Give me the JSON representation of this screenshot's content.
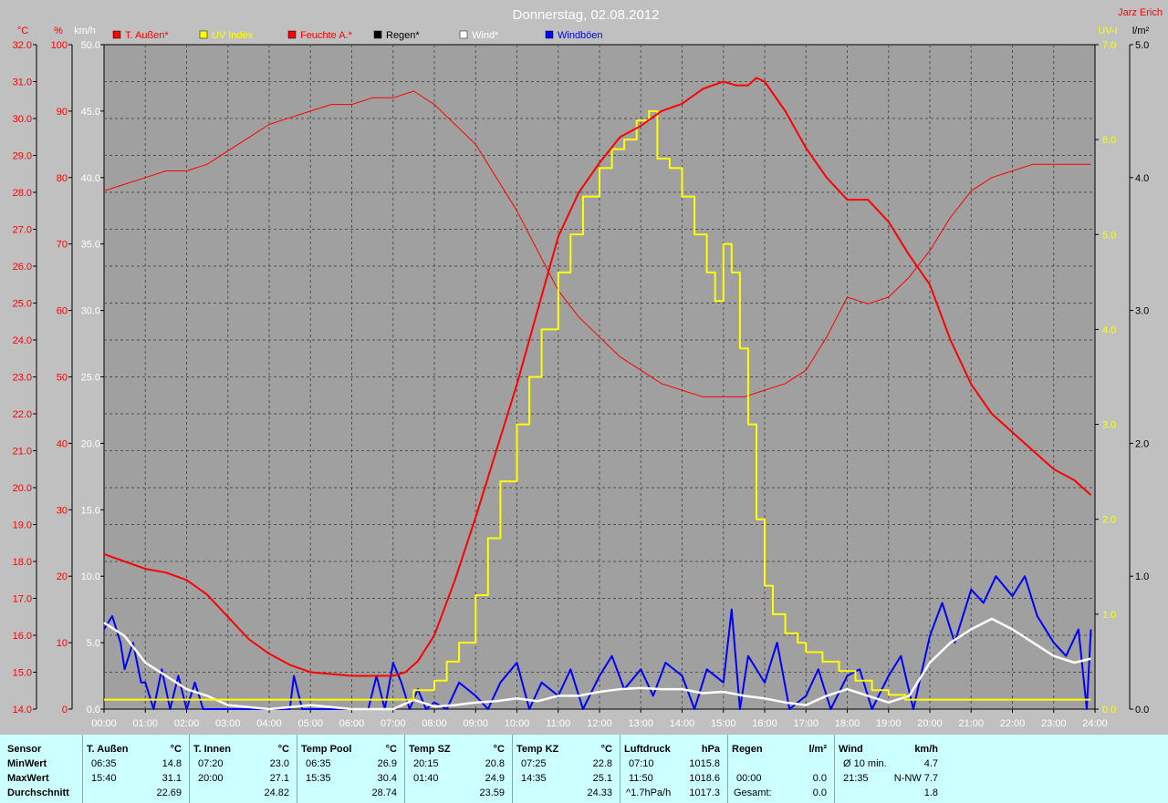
{
  "header": {
    "title": "Donnerstag, 02.08.2012",
    "author": "Jarz Erich"
  },
  "colors": {
    "temp": "#ff0000",
    "humidity": "#ff0000",
    "uv": "#ffff00",
    "rain": "#000000",
    "wind": "#ffffff",
    "gust": "#0000ff",
    "plot_bg": "#a0a0a0",
    "frame_bg": "#c0c0c0"
  },
  "chart_data": {
    "type": "line",
    "x_ticks": [
      "00:00",
      "01:00",
      "02:00",
      "03:00",
      "04:00",
      "05:00",
      "06:00",
      "07:00",
      "08:00",
      "09:00",
      "10:00",
      "11:00",
      "12:00",
      "13:00",
      "14:00",
      "15:00",
      "16:00",
      "17:00",
      "18:00",
      "19:00",
      "20:00",
      "21:00",
      "22:00",
      "23:00",
      "24:00"
    ],
    "axes": {
      "temp": {
        "label": "°C",
        "min": 14.0,
        "max": 32.0,
        "ticks": [
          "32.0",
          "31.0",
          "30.0",
          "29.0",
          "28.0",
          "27.0",
          "26.0",
          "25.0",
          "24.0",
          "23.0",
          "22.0",
          "21.0",
          "20.0",
          "19.0",
          "18.0",
          "17.0",
          "16.0",
          "15.0",
          "14.0"
        ]
      },
      "humidity": {
        "label": "%",
        "min": 0,
        "max": 100,
        "ticks": [
          "100",
          "90",
          "80",
          "70",
          "60",
          "50",
          "40",
          "30",
          "20",
          "10",
          "0"
        ]
      },
      "wind": {
        "label": "km/h",
        "min": 0,
        "max": 50,
        "ticks": [
          "50.0",
          "45.0",
          "40.0",
          "35.0",
          "30.0",
          "25.0",
          "20.0",
          "15.0",
          "10.0",
          "5.0",
          "0.0"
        ]
      },
      "uv": {
        "label": "UV-I",
        "min": 0,
        "max": 7,
        "ticks": [
          "7.0",
          "6.0",
          "5.0",
          "4.0",
          "3.0",
          "2.0",
          "1.0",
          "0.0"
        ]
      },
      "rain": {
        "label": "l/m²",
        "min": 0,
        "max": 5,
        "ticks": [
          "5.0",
          "4.0",
          "3.0",
          "2.0",
          "1.0",
          "0.0"
        ]
      }
    },
    "legend": [
      "T. Außen*",
      "UV Index",
      "Feuchte A.*",
      "Regen*",
      "Wind*",
      "Windböen"
    ],
    "series": [
      {
        "name": "T. Außen*",
        "axis": "temp",
        "x": [
          0,
          0.5,
          1,
          1.5,
          2,
          2.5,
          3,
          3.5,
          4,
          4.5,
          5,
          5.5,
          6,
          6.5,
          7,
          7.3,
          7.6,
          8,
          8.5,
          9,
          9.5,
          10,
          10.5,
          11,
          11.5,
          12,
          12.5,
          13,
          13.5,
          14,
          14.5,
          15,
          15.3,
          15.6,
          15.8,
          16,
          16.5,
          17,
          17.5,
          18,
          18.5,
          19,
          19.5,
          20,
          20.5,
          21,
          21.5,
          22,
          22.5,
          23,
          23.5,
          23.9
        ],
        "y": [
          18.2,
          18.0,
          17.8,
          17.7,
          17.5,
          17.1,
          16.5,
          15.9,
          15.5,
          15.2,
          15.0,
          14.95,
          14.9,
          14.9,
          14.9,
          15.0,
          15.3,
          16.0,
          17.5,
          19.2,
          21.0,
          22.8,
          24.8,
          26.8,
          28.0,
          28.8,
          29.5,
          29.8,
          30.2,
          30.4,
          30.8,
          31.0,
          30.9,
          30.9,
          31.1,
          31.0,
          30.2,
          29.2,
          28.4,
          27.8,
          27.8,
          27.2,
          26.3,
          25.5,
          24.0,
          22.8,
          22.0,
          21.5,
          21.0,
          20.5,
          20.2,
          19.8
        ]
      },
      {
        "name": "Feuchte A.*",
        "axis": "humidity",
        "x": [
          0,
          0.5,
          1,
          1.5,
          2,
          2.5,
          3,
          3.5,
          4,
          4.5,
          5,
          5.5,
          6,
          6.5,
          7,
          7.5,
          8,
          8.5,
          9,
          9.5,
          10,
          10.5,
          11,
          11.5,
          12,
          12.5,
          13,
          13.5,
          14,
          14.5,
          15,
          15.5,
          16,
          16.5,
          17,
          17.5,
          18,
          18.5,
          19,
          19.5,
          20,
          20.5,
          21,
          21.5,
          22,
          22.5,
          23,
          23.5,
          23.9
        ],
        "y": [
          78,
          79,
          80,
          81,
          81,
          82,
          84,
          86,
          88,
          89,
          90,
          91,
          91,
          92,
          92,
          93,
          91,
          88,
          85,
          80,
          75,
          69,
          63,
          59,
          56,
          53,
          51,
          49,
          48,
          47,
          47,
          47,
          48,
          49,
          51,
          56,
          62,
          61,
          62,
          65,
          69,
          74,
          78,
          80,
          81,
          82,
          82,
          82,
          82
        ]
      },
      {
        "name": "UV Index",
        "axis": "uv",
        "x": [
          0,
          7,
          7.5,
          8,
          8.3,
          8.6,
          9,
          9.3,
          9.6,
          10,
          10.3,
          10.6,
          11,
          11.3,
          11.6,
          12,
          12.3,
          12.6,
          12.9,
          13.2,
          13.4,
          13.7,
          14,
          14.3,
          14.6,
          14.8,
          15.0,
          15.2,
          15.4,
          15.6,
          15.8,
          16.0,
          16.2,
          16.5,
          16.8,
          17.0,
          17.4,
          17.8,
          18.2,
          18.6,
          19.0,
          19.4,
          23.9
        ],
        "y": [
          0.1,
          0.1,
          0.2,
          0.3,
          0.5,
          0.7,
          1.2,
          1.8,
          2.4,
          3.0,
          3.5,
          4.0,
          4.6,
          5.0,
          5.4,
          5.7,
          5.9,
          6.0,
          6.2,
          6.3,
          5.8,
          5.7,
          5.4,
          5.0,
          4.6,
          4.3,
          4.9,
          4.6,
          3.8,
          3.0,
          2.0,
          1.3,
          1.0,
          0.8,
          0.7,
          0.6,
          0.5,
          0.4,
          0.3,
          0.2,
          0.15,
          0.1,
          0.1
        ]
      },
      {
        "name": "Wind*",
        "axis": "wind",
        "x": [
          0,
          0.5,
          1,
          1.5,
          2,
          2.5,
          3,
          4,
          5,
          6,
          7,
          7.5,
          8,
          8.5,
          9,
          9.5,
          10,
          10.5,
          11,
          11.5,
          12,
          12.5,
          13,
          13.5,
          14,
          14.5,
          15,
          15.5,
          16,
          16.5,
          17,
          17.5,
          18,
          18.5,
          19,
          19.5,
          20,
          20.5,
          21,
          21.5,
          22,
          22.5,
          23,
          23.5,
          23.9
        ],
        "y": [
          6.5,
          5.5,
          3.5,
          2.5,
          1.5,
          1.0,
          0.3,
          0,
          0.3,
          0,
          0,
          0.7,
          0.2,
          0.3,
          0.5,
          0.6,
          0.8,
          0.6,
          1.0,
          1.0,
          1.3,
          1.5,
          1.6,
          1.5,
          1.5,
          1.2,
          1.3,
          1.0,
          0.8,
          0.5,
          0.3,
          1.0,
          1.5,
          1.0,
          0.5,
          1.0,
          3.5,
          5.0,
          6.0,
          6.8,
          6.0,
          5.0,
          4.0,
          3.5,
          3.8
        ]
      },
      {
        "name": "Windböen",
        "axis": "wind",
        "x": [
          0,
          0.2,
          0.4,
          0.5,
          0.7,
          0.9,
          1.0,
          1.2,
          1.4,
          1.6,
          1.8,
          2.0,
          2.2,
          2.4,
          2.6,
          3,
          4.5,
          4.6,
          4.8,
          5.0,
          6.4,
          6.6,
          6.8,
          7.0,
          7.2,
          7.4,
          7.6,
          7.8,
          8.0,
          8.3,
          8.6,
          9.0,
          9.3,
          9.6,
          10,
          10.3,
          10.6,
          11,
          11.3,
          11.6,
          12,
          12.3,
          12.6,
          13,
          13.3,
          13.6,
          14,
          14.3,
          14.6,
          15,
          15.2,
          15.4,
          15.6,
          16,
          16.3,
          16.6,
          17,
          17.3,
          17.6,
          18,
          18.3,
          18.6,
          19,
          19.3,
          19.6,
          20,
          20.3,
          20.6,
          21,
          21.3,
          21.6,
          22,
          22.3,
          22.6,
          23,
          23.3,
          23.6,
          23.8,
          23.9
        ],
        "y": [
          6.0,
          7.0,
          5.0,
          3.0,
          5.0,
          2.0,
          2.0,
          0,
          3.0,
          0,
          2.5,
          0,
          2.0,
          0,
          0,
          0,
          0,
          2.5,
          0,
          0,
          0,
          2.5,
          0,
          3.5,
          2.0,
          0,
          1.5,
          0,
          0.5,
          0,
          2.0,
          1.0,
          0,
          2.0,
          3.5,
          0,
          2.0,
          1.0,
          3.0,
          0,
          2.5,
          4.0,
          1.5,
          3.0,
          1.0,
          3.5,
          2.5,
          0,
          3.0,
          2.0,
          7.5,
          0,
          4.0,
          2.0,
          5.0,
          0,
          1.0,
          3.0,
          0,
          2.5,
          3.0,
          0,
          2.5,
          4.0,
          0,
          5.5,
          8.0,
          5.0,
          9.0,
          8.0,
          10.0,
          8.5,
          10.0,
          7.0,
          5.0,
          4.0,
          6.0,
          0,
          6.0
        ]
      }
    ]
  },
  "stats": {
    "row_labels": [
      "Sensor",
      "MinWert",
      "MaxWert",
      "Durchschnitt"
    ],
    "blocks": [
      {
        "title": "T. Außen",
        "unit": "°C",
        "min_time": "06:35",
        "min_val": "14.8",
        "max_time": "15:40",
        "max_val": "31.1",
        "avg": "22.69"
      },
      {
        "title": "T. Innen",
        "unit": "°C",
        "min_time": "07:20",
        "min_val": "23.0",
        "max_time": "20:00",
        "max_val": "27.1",
        "avg": "24.82"
      },
      {
        "title": "Temp Pool",
        "unit": "°C",
        "min_time": "06:35",
        "min_val": "26.9",
        "max_time": "15:35",
        "max_val": "30.4",
        "avg": "28.74"
      },
      {
        "title": "Temp SZ",
        "unit": "°C",
        "min_time": "20:15",
        "min_val": "20.8",
        "max_time": "01:40",
        "max_val": "24.9",
        "avg": "23.59"
      },
      {
        "title": "Temp KZ",
        "unit": "°C",
        "min_time": "07:25",
        "min_val": "22.8",
        "max_time": "14:35",
        "max_val": "25.1",
        "avg": "24.33"
      },
      {
        "title": "Luftdruck",
        "unit": "hPa",
        "min_time": "07:10",
        "min_val": "1015.8",
        "max_time": "11:50",
        "max_val": "1018.6",
        "avg_label": "^1.7hPa/h",
        "avg": "1017.3"
      },
      {
        "title": "Regen",
        "unit": "l/m²",
        "min_time": "",
        "min_val": "",
        "max_time": "00:00",
        "max_val": "0.0",
        "avg_label": "Gesamt:",
        "avg": "0.0"
      },
      {
        "title": "Wind",
        "unit": "km/h",
        "min_time": "Ø 10 min.",
        "min_val": "4.7",
        "max_time": "21:35",
        "max_val": "N-NW 7.7",
        "avg": "1.8"
      }
    ]
  }
}
